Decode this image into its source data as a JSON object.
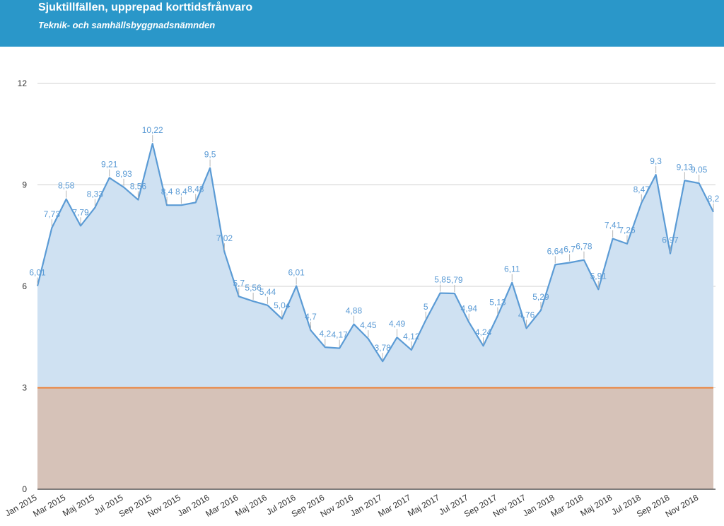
{
  "header": {
    "title": "Sjuktillfällen, upprepad korttidsfrånvaro",
    "subtitle": "Teknik- och samhällsbyggnadsnämnden"
  },
  "colors": {
    "header_bg": "#2a97c9",
    "line": "#5b9bd5",
    "area": "#cfe1f2",
    "target_fill": "#d6c2b8",
    "target_line": "#ed7d31",
    "grid": "#d0d0d0"
  },
  "chart_data": {
    "type": "area",
    "title": "Sjuktillfällen, upprepad korttidsfrånvaro",
    "subtitle": "Teknik- och samhällsbyggnadsnämnden",
    "ylim": [
      0,
      12
    ],
    "yticks": [
      "0",
      "3",
      "6",
      "9",
      "12"
    ],
    "grid": true,
    "x": [
      "Jan 2015",
      "Feb 2015",
      "Mar 2015",
      "Apr 2015",
      "Maj 2015",
      "Jun 2015",
      "Jul 2015",
      "Aug 2015",
      "Sep 2015",
      "Okt 2015",
      "Nov 2015",
      "Dec 2015",
      "Jan 2016",
      "Feb 2016",
      "Mar 2016",
      "Apr 2016",
      "Maj 2016",
      "Jun 2016",
      "Jul 2016",
      "Aug 2016",
      "Sep 2016",
      "Okt 2016",
      "Nov 2016",
      "Dec 2016",
      "Jan 2017",
      "Feb 2017",
      "Mar 2017",
      "Apr 2017",
      "Maj 2017",
      "Jun 2017",
      "Jul 2017",
      "Aug 2017",
      "Sep 2017",
      "Okt 2017",
      "Nov 2017",
      "Dec 2017",
      "Jan 2018",
      "Feb 2018",
      "Mar 2018",
      "Apr 2018",
      "Maj 2018",
      "Jun 2018",
      "Jul 2018",
      "Aug 2018",
      "Sep 2018",
      "Okt 2018",
      "Nov 2018",
      "Dec 2018"
    ],
    "xtick_labels": [
      "Jan 2015",
      "Mar 2015",
      "Maj 2015",
      "Jul 2015",
      "Sep 2015",
      "Nov 2015",
      "Jan 2016",
      "Mar 2016",
      "Maj 2016",
      "Jul 2016",
      "Sep 2016",
      "Nov 2016",
      "Jan 2017",
      "Mar 2017",
      "Maj 2017",
      "Jul 2017",
      "Sep 2017",
      "Nov 2017",
      "Jan 2018",
      "Mar 2018",
      "Maj 2018",
      "Jul 2018",
      "Sep 2018",
      "Nov 2018"
    ],
    "series": [
      {
        "values": [
          6.01,
          7.73,
          8.58,
          7.79,
          8.33,
          9.21,
          8.93,
          8.56,
          10.22,
          8.4,
          8.4,
          8.48,
          9.5,
          7.02,
          5.7,
          5.56,
          5.44,
          5.04,
          6.01,
          4.7,
          4.2,
          4.17,
          4.88,
          4.45,
          3.78,
          4.49,
          4.12,
          5,
          5.8,
          5.79,
          4.94,
          4.24,
          5.13,
          6.11,
          4.76,
          5.29,
          6.64,
          6.7,
          6.78,
          5.91,
          7.41,
          7.26,
          8.47,
          9.3,
          6.97,
          9.13,
          9.05,
          8.2
        ],
        "labels": [
          "6,01",
          "7,73",
          "8,58",
          "7,79",
          "8,33",
          "9,21",
          "8,93",
          "8,56",
          "10,22",
          "8,4",
          "8,4",
          "8,48",
          "9,5",
          "7,02",
          "5,7",
          "5,56",
          "5,44",
          "5,04",
          "6,01",
          "4,7",
          "4,2",
          "4,17",
          "4,88",
          "4,45",
          "3,78",
          "4,49",
          "4,12",
          "5",
          "5,8",
          "5,79",
          "4,94",
          "4,24",
          "5,13",
          "6,11",
          "4,76",
          "5,29",
          "6,64",
          "6,7",
          "6,78",
          "5,91",
          "7,41",
          "7,26",
          "8,47",
          "9,3",
          "6,97",
          "9,13",
          "9,05",
          "8,2"
        ]
      },
      {
        "values": [
          3,
          3,
          3,
          3,
          3,
          3,
          3,
          3,
          3,
          3,
          3,
          3,
          3,
          3,
          3,
          3,
          3,
          3,
          3,
          3,
          3,
          3,
          3,
          3,
          3,
          3,
          3,
          3,
          3,
          3,
          3,
          3,
          3,
          3,
          3,
          3,
          3,
          3,
          3,
          3,
          3,
          3,
          3,
          3,
          3,
          3,
          3,
          3
        ]
      }
    ]
  }
}
